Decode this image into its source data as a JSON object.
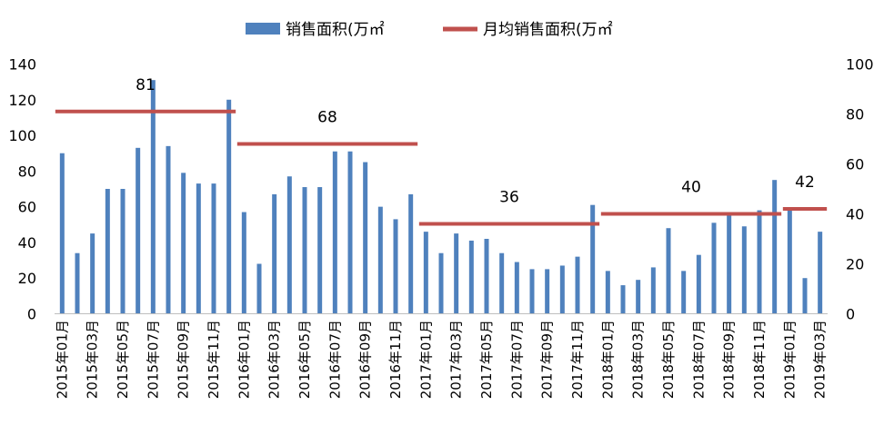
{
  "chart_data": {
    "type": "bar",
    "legend": {
      "bar_label": "销售面积(万㎡",
      "line_label": "月均销售面积(万㎡",
      "placement": "top"
    },
    "colors": {
      "bar": "#4F81BD",
      "line": "#C0504D"
    },
    "left_axis": {
      "min": 0,
      "max": 140,
      "ticks": [
        "0",
        "20",
        "40",
        "60",
        "80",
        "100",
        "120",
        "140"
      ]
    },
    "right_axis": {
      "min": 0,
      "max": 100,
      "ticks": [
        "0",
        "20",
        "40",
        "60",
        "80",
        "100"
      ]
    },
    "categories": [
      "2015年01月",
      "2015年02月",
      "2015年03月",
      "2015年04月",
      "2015年05月",
      "2015年06月",
      "2015年07月",
      "2015年08月",
      "2015年09月",
      "2015年10月",
      "2015年11月",
      "2015年12月",
      "2016年01月",
      "2016年02月",
      "2016年03月",
      "2016年04月",
      "2016年05月",
      "2016年06月",
      "2016年07月",
      "2016年08月",
      "2016年09月",
      "2016年10月",
      "2016年11月",
      "2016年12月",
      "2017年01月",
      "2017年02月",
      "2017年03月",
      "2017年04月",
      "2017年05月",
      "2017年06月",
      "2017年07月",
      "2017年08月",
      "2017年09月",
      "2017年10月",
      "2017年11月",
      "2017年12月",
      "2018年01月",
      "2018年02月",
      "2018年03月",
      "2018年04月",
      "2018年05月",
      "2018年06月",
      "2018年07月",
      "2018年08月",
      "2018年09月",
      "2018年10月",
      "2018年11月",
      "2018年12月",
      "2019年01月",
      "2019年02月",
      "2019年03月"
    ],
    "values": [
      90,
      34,
      45,
      70,
      70,
      93,
      131,
      94,
      79,
      73,
      73,
      120,
      57,
      28,
      67,
      77,
      71,
      71,
      91,
      91,
      85,
      60,
      53,
      67,
      46,
      34,
      45,
      41,
      42,
      34,
      29,
      25,
      25,
      27,
      32,
      61,
      24,
      16,
      19,
      26,
      48,
      24,
      33,
      51,
      55,
      49,
      58,
      75,
      59,
      20,
      46
    ],
    "averages": [
      {
        "label": "81",
        "value": 81,
        "start": 0,
        "end": 11
      },
      {
        "label": "68",
        "value": 68,
        "start": 12,
        "end": 23
      },
      {
        "label": "36",
        "value": 36,
        "start": 24,
        "end": 35
      },
      {
        "label": "40",
        "value": 40,
        "start": 36,
        "end": 47
      },
      {
        "label": "42",
        "value": 42,
        "start": 48,
        "end": 50
      }
    ],
    "xtick_every": 2
  }
}
